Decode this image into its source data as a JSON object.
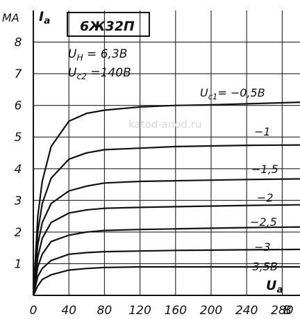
{
  "watermark": "katod-anod.ru",
  "chart_data": {
    "type": "line",
    "title": "6Ж32П",
    "ylabel": "I",
    "ylabel_sub": "a",
    "yunit": "MA",
    "xlabel": "U",
    "xlabel_sub": "a",
    "xunit": "B",
    "params": [
      {
        "sym": "U",
        "sub": "H",
        "value": "=   6,3B"
      },
      {
        "sym": "U",
        "sub": "c2",
        "value": "=140B"
      }
    ],
    "xlim": [
      0,
      300
    ],
    "ylim": [
      0,
      9
    ],
    "x_ticks": [
      {
        "value": 0,
        "label": "0"
      },
      {
        "value": 40,
        "label": "40"
      },
      {
        "value": 80,
        "label": "80"
      },
      {
        "value": 120,
        "label": "120"
      },
      {
        "value": 160,
        "label": "160"
      },
      {
        "value": 200,
        "label": "200"
      },
      {
        "value": 240,
        "label": "240"
      },
      {
        "value": 280,
        "label": "280"
      }
    ],
    "y_ticks": [
      {
        "value": 1,
        "label": "1"
      },
      {
        "value": 2,
        "label": "2"
      },
      {
        "value": 3,
        "label": "3"
      },
      {
        "value": 4,
        "label": "4"
      },
      {
        "value": 5,
        "label": "5"
      },
      {
        "value": 6,
        "label": "6"
      },
      {
        "value": 7,
        "label": "7"
      },
      {
        "value": 8,
        "label": "8"
      }
    ],
    "grid": true,
    "series": [
      {
        "name": "U",
        "name_sub": "c1",
        "name_value": "= −0,5B",
        "x": [
          0,
          5,
          10,
          20,
          40,
          60,
          80,
          120,
          160,
          200,
          240,
          300
        ],
        "y": [
          0,
          2.5,
          3.6,
          4.7,
          5.5,
          5.75,
          5.85,
          5.95,
          6.0,
          6.02,
          6.05,
          6.1
        ]
      },
      {
        "name": "−1",
        "x": [
          0,
          5,
          10,
          20,
          40,
          60,
          80,
          120,
          160,
          200,
          240,
          300
        ],
        "y": [
          0,
          2.0,
          2.9,
          3.7,
          4.3,
          4.5,
          4.6,
          4.65,
          4.7,
          4.72,
          4.74,
          4.75
        ]
      },
      {
        "name": "−1,5",
        "x": [
          0,
          5,
          10,
          20,
          40,
          60,
          80,
          120,
          160,
          200,
          240,
          300
        ],
        "y": [
          0,
          1.6,
          2.3,
          2.9,
          3.3,
          3.45,
          3.55,
          3.6,
          3.62,
          3.64,
          3.66,
          3.68
        ]
      },
      {
        "name": "−2",
        "x": [
          0,
          5,
          10,
          20,
          40,
          60,
          80,
          120,
          160,
          200,
          240,
          300
        ],
        "y": [
          0,
          1.2,
          1.8,
          2.3,
          2.6,
          2.7,
          2.75,
          2.78,
          2.8,
          2.82,
          2.84,
          2.86
        ]
      },
      {
        "name": "−2,5",
        "x": [
          0,
          5,
          10,
          20,
          40,
          60,
          80,
          120,
          160,
          200,
          240,
          300
        ],
        "y": [
          0,
          0.9,
          1.3,
          1.7,
          1.9,
          2.0,
          2.05,
          2.08,
          2.1,
          2.12,
          2.14,
          2.16
        ]
      },
      {
        "name": "−3",
        "x": [
          0,
          5,
          10,
          20,
          40,
          60,
          80,
          120,
          160,
          200,
          240,
          300
        ],
        "y": [
          0,
          0.6,
          0.85,
          1.1,
          1.3,
          1.35,
          1.38,
          1.4,
          1.42,
          1.43,
          1.44,
          1.45
        ]
      },
      {
        "name": "−3,5B",
        "x": [
          0,
          5,
          10,
          20,
          40,
          60,
          80,
          120,
          160,
          200,
          240,
          300
        ],
        "y": [
          0,
          0.3,
          0.5,
          0.65,
          0.8,
          0.85,
          0.88,
          0.9,
          0.9,
          0.9,
          0.9,
          0.9
        ]
      }
    ]
  }
}
